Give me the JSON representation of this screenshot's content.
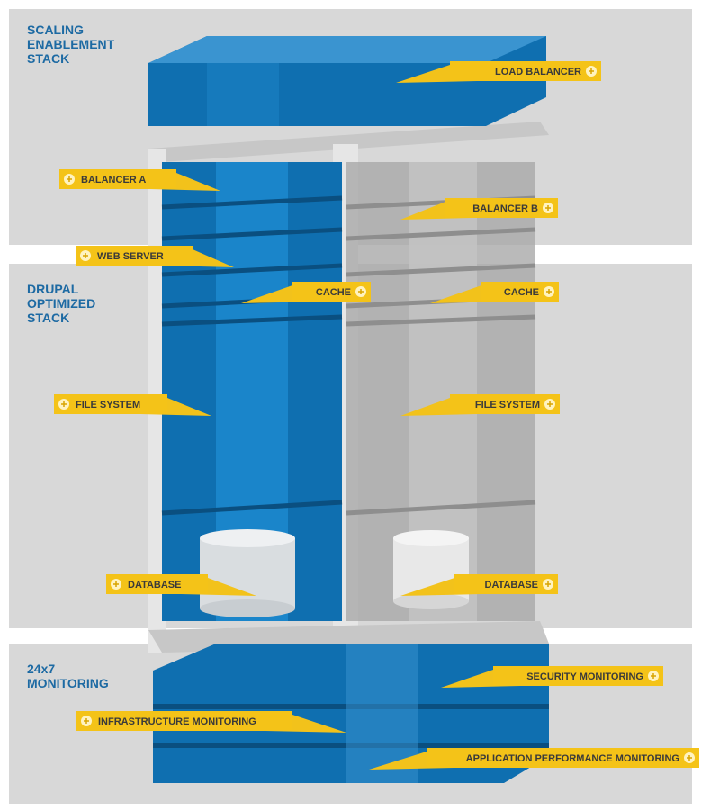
{
  "sections": [
    {
      "lines": [
        "SCALING",
        "ENABLEMENT",
        "STACK"
      ]
    },
    {
      "lines": [
        "DRUPAL",
        "OPTIMIZED",
        "STACK"
      ]
    },
    {
      "lines": [
        "24x7",
        "MONITORING"
      ]
    }
  ],
  "callouts": [
    {
      "label": "LOAD BALANCER"
    },
    {
      "label": "BALANCER A"
    },
    {
      "label": "BALANCER B"
    },
    {
      "label": "WEB SERVER"
    },
    {
      "label": "CACHE"
    },
    {
      "label": "CACHE"
    },
    {
      "label": "FILE SYSTEM"
    },
    {
      "label": "FILE SYSTEM"
    },
    {
      "label": "DATABASE"
    },
    {
      "label": "DATABASE"
    },
    {
      "label": "SECURITY MONITORING"
    },
    {
      "label": "INFRASTRUCTURE MONITORING"
    },
    {
      "label": "APPLICATION PERFORMANCE MONITORING"
    }
  ]
}
